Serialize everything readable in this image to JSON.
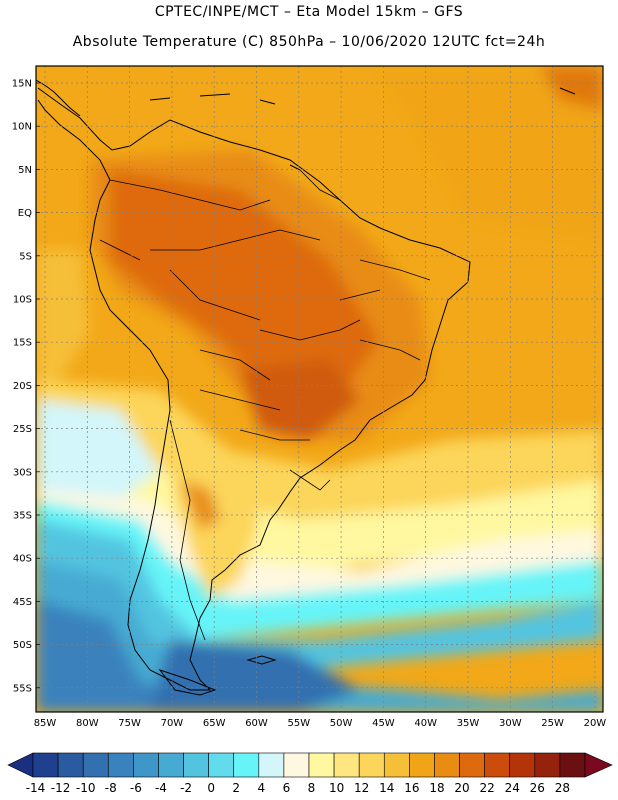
{
  "title": {
    "line1": "CPTEC/INPE/MCT –  Eta Model 15km – GFS",
    "line2": "Absolute Temperature (C) 850hPa – 10/06/2020 12UTC fct=24h"
  },
  "axes": {
    "lat_labels": [
      "15N",
      "10N",
      "5N",
      "EQ",
      "5S",
      "10S",
      "15S",
      "20S",
      "25S",
      "30S",
      "35S",
      "40S",
      "45S",
      "50S",
      "55S"
    ],
    "lon_labels": [
      "85W",
      "80W",
      "75W",
      "70W",
      "65W",
      "60W",
      "55W",
      "50W",
      "45W",
      "40W",
      "35W",
      "30W",
      "25W",
      "20W"
    ]
  },
  "colorbar": {
    "labels": [
      "-14",
      "-12",
      "-10",
      "-8",
      "-6",
      "-4",
      "-2",
      "0",
      "2",
      "4",
      "6",
      "8",
      "10",
      "12",
      "14",
      "16",
      "18",
      "20",
      "22",
      "24",
      "26",
      "28"
    ],
    "colors": [
      "#1f3f8f",
      "#2a5aa0",
      "#3370b0",
      "#3a82bd",
      "#3f96c8",
      "#46aad2",
      "#52c4e0",
      "#62dcec",
      "#66f4f8",
      "#d2f6fa",
      "#fff8e0",
      "#fff8a0",
      "#ffe680",
      "#fcd65a",
      "#f6bf38",
      "#f0a418",
      "#e88c14",
      "#de6a10",
      "#cc4c0c",
      "#b4340a",
      "#94220c",
      "#6a1010"
    ]
  }
}
